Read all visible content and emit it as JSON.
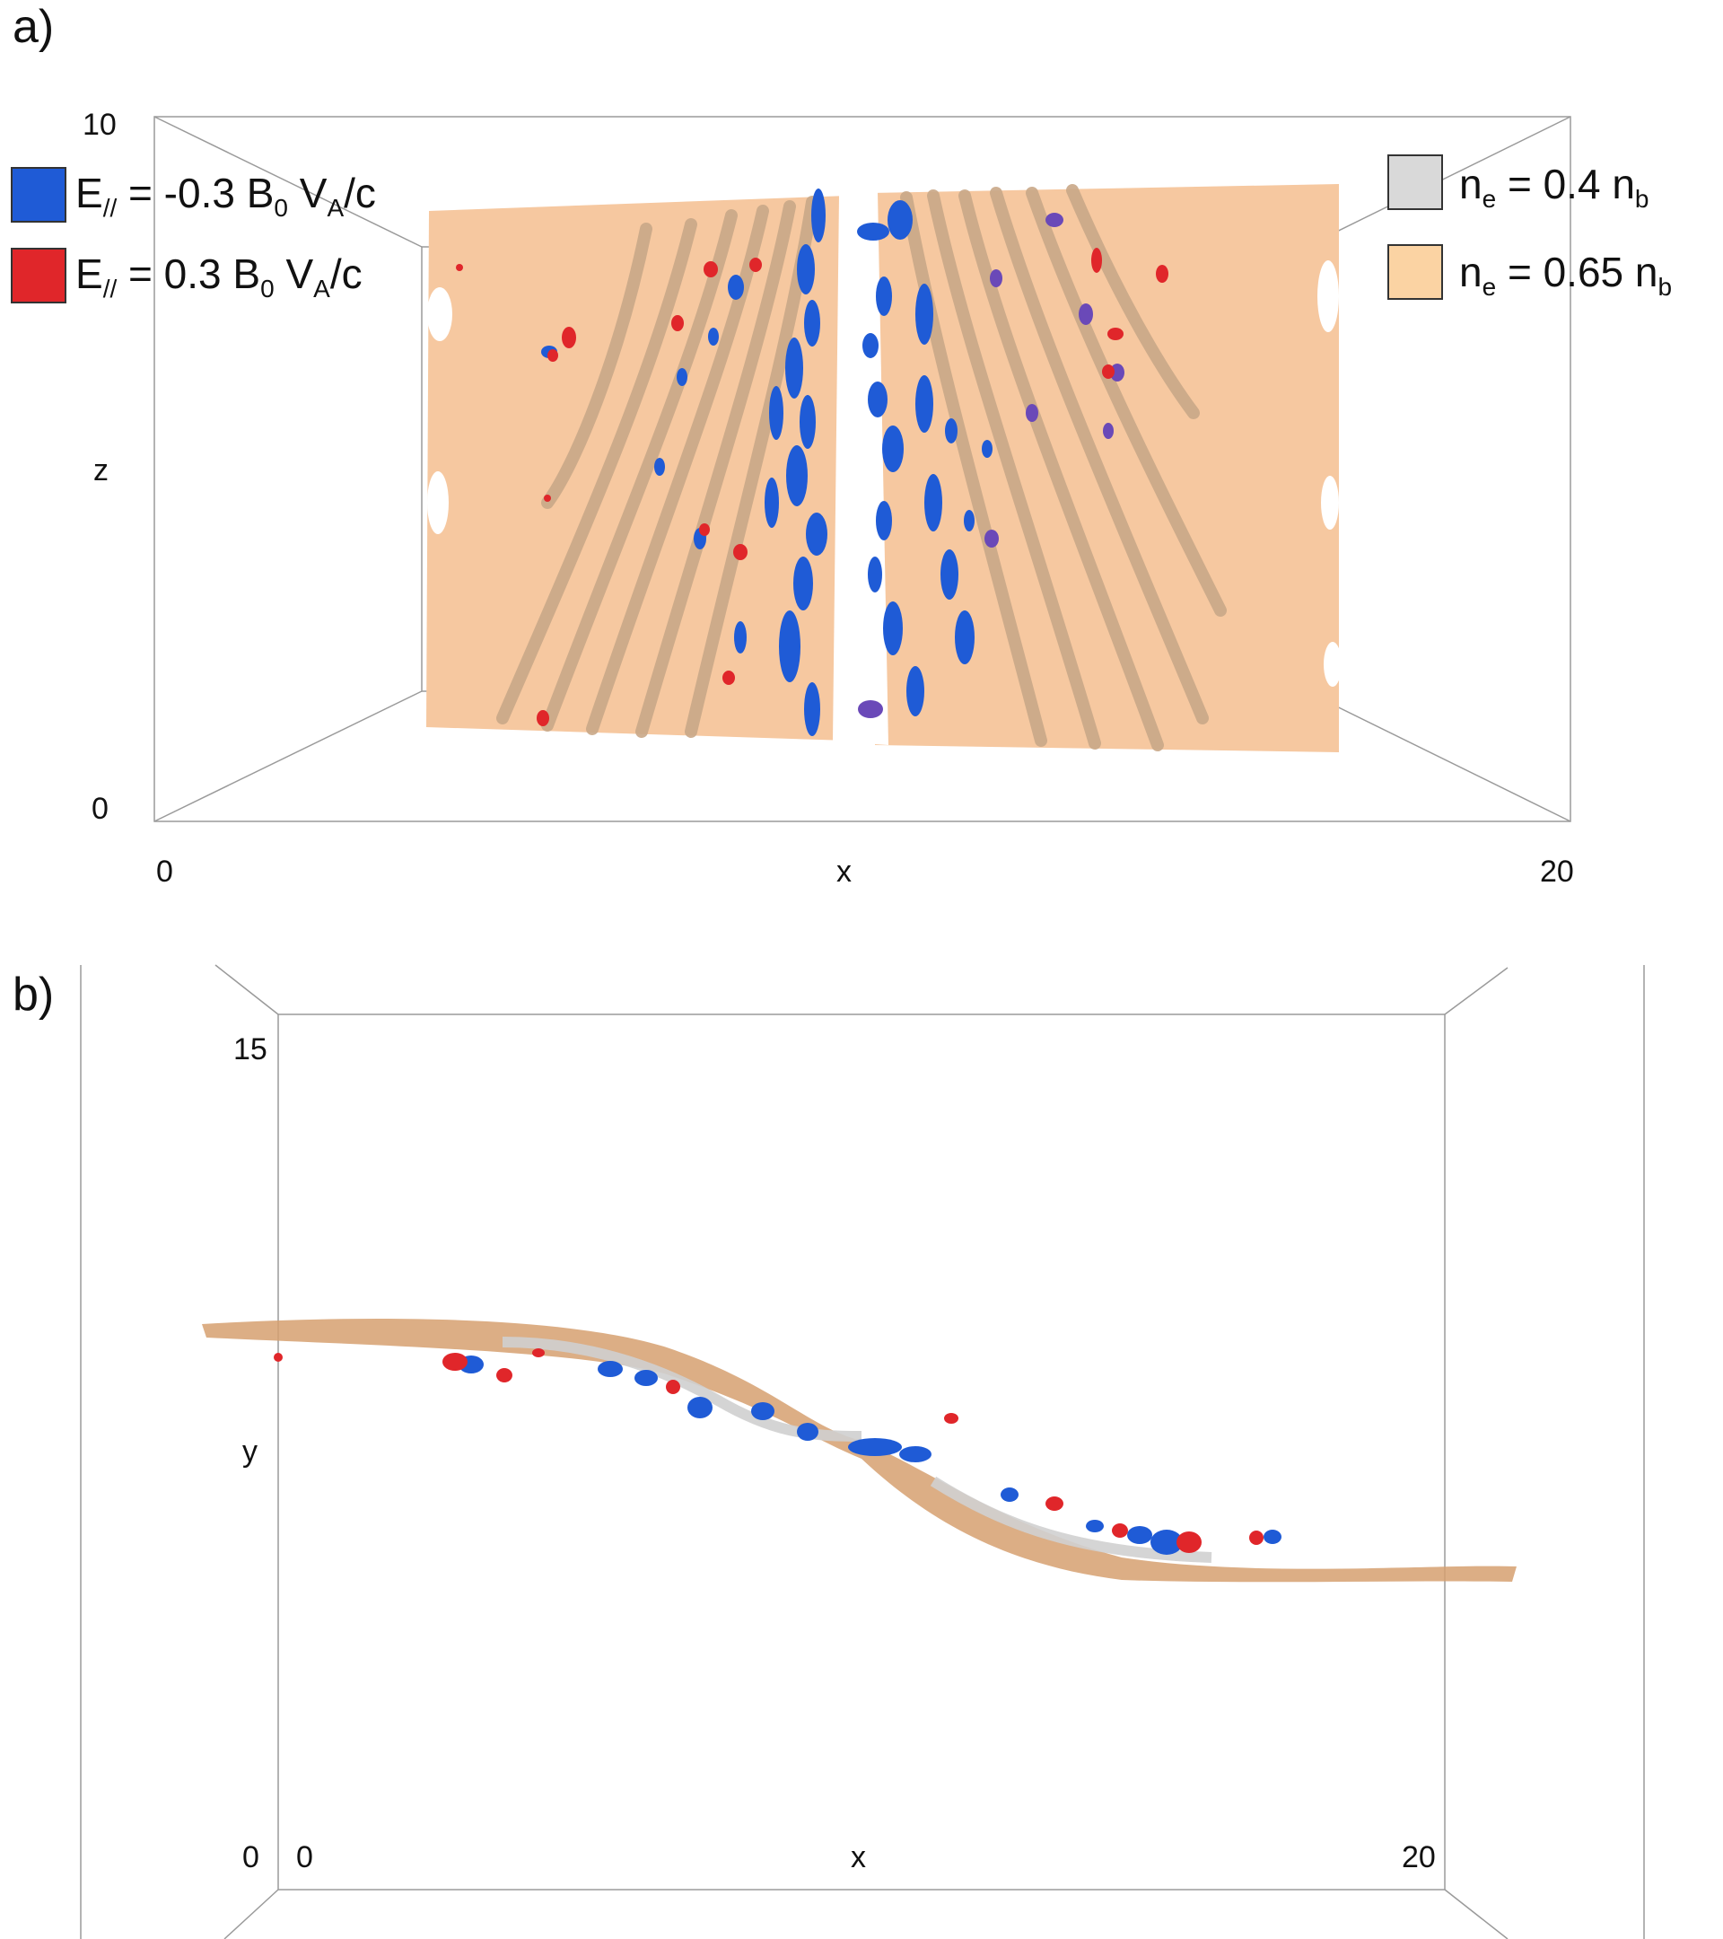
{
  "panel_a": {
    "label": "a)",
    "z_tick_top": "10",
    "z_tick_bottom": "0",
    "z_axis_label": "z",
    "x_tick_left": "0",
    "x_axis_label": "x",
    "x_tick_right": "20",
    "legend_left": [
      {
        "color": "#1f5bd6",
        "text_main": "E",
        "text_sub": "//",
        "text_rest": " = -0.3 B",
        "text_sub2": "0",
        "text_end": " V",
        "text_sub3": "A",
        "text_tail": "/c"
      },
      {
        "color": "#e0262a",
        "text_main": "E",
        "text_sub": "//",
        "text_rest": " = 0.3 B",
        "text_sub2": "0",
        "text_end": " V",
        "text_sub3": "A",
        "text_tail": "/c"
      }
    ],
    "legend_right": [
      {
        "color": "#d9d9d9",
        "text_main": "n",
        "text_sub": "e",
        "text_rest": " = 0.4 n",
        "text_sub2": "b"
      },
      {
        "color": "#fbd3a3",
        "text_main": "n",
        "text_sub": "e",
        "text_rest": " = 0.65 n",
        "text_sub2": "b"
      }
    ]
  },
  "panel_b": {
    "label": "b)",
    "y_tick_top": "15",
    "y_tick_bottom": "0",
    "y_axis_label": "y",
    "x_tick_left": "0",
    "x_axis_label": "x",
    "x_tick_right": "20"
  },
  "colors": {
    "density_high": "#f6c8a0",
    "density_sheet": "#d9a577",
    "field_negative": "#1f5bd6",
    "field_positive": "#e0262a",
    "box_line": "#9a9a9a"
  }
}
